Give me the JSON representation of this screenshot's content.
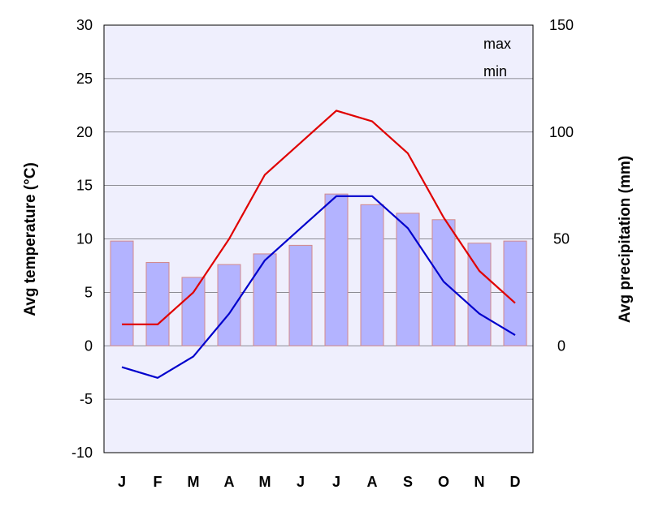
{
  "chart_data": {
    "type": "bar+line",
    "categories": [
      "J",
      "F",
      "M",
      "A",
      "M",
      "J",
      "J",
      "A",
      "S",
      "O",
      "N",
      "D"
    ],
    "bars": {
      "name": "",
      "axis": "right",
      "values": [
        49,
        39,
        32,
        38,
        43,
        47,
        71,
        66,
        62,
        59,
        48,
        49
      ],
      "color": "#b3b3ff",
      "edge_color": "#d48a8a"
    },
    "series": [
      {
        "name": "max",
        "axis": "left",
        "color": "#e00000",
        "values": [
          2,
          2,
          5,
          10,
          16,
          19,
          22,
          21,
          18,
          12,
          7,
          4
        ]
      },
      {
        "name": "min",
        "axis": "left",
        "color": "#0000cc",
        "values": [
          -2,
          -3,
          -1,
          3,
          8,
          11,
          14,
          14,
          11,
          6,
          3,
          1
        ]
      }
    ],
    "left_axis": {
      "label": "Avg temperature (°C)",
      "ylim": [
        -10,
        30
      ],
      "ticks": [
        -10,
        -5,
        0,
        5,
        10,
        15,
        20,
        25,
        30
      ]
    },
    "right_axis": {
      "label": "Avg precipitation (mm)",
      "ylim": [
        -50,
        150
      ],
      "ticks": [
        0,
        50,
        100,
        150
      ]
    },
    "grid": true,
    "legend_placement": "top-right",
    "plot_background": "#efeffd"
  }
}
